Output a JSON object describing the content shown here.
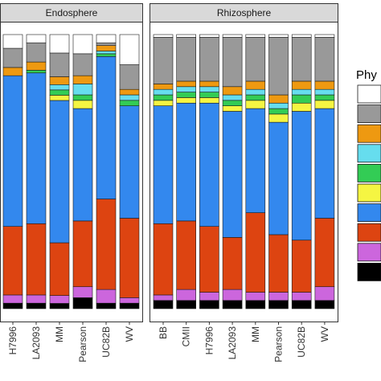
{
  "chart_data": {
    "type": "bar",
    "stacked": true,
    "normalized": true,
    "ylim": [
      0,
      1
    ],
    "grid": false,
    "legend_placement": "right",
    "legend_title": "Phy",
    "series": [
      {
        "color": "#000000"
      },
      {
        "color": "#CC66DD"
      },
      {
        "color": "#DD4411"
      },
      {
        "color": "#3388EE"
      },
      {
        "color": "#F5F542"
      },
      {
        "color": "#33CC55"
      },
      {
        "color": "#66DDEE"
      },
      {
        "color": "#EE9911"
      },
      {
        "color": "#999999"
      },
      {
        "color": "#FFFFFF"
      }
    ],
    "panels": [
      {
        "strip": "Endosphere",
        "categories": [
          "H7996",
          "LA2093",
          "MM",
          "Pearson",
          "UC82B",
          "WV"
        ],
        "values": [
          [
            0.02,
            0.03,
            0.25,
            0.55,
            0.0,
            0.0,
            0.0,
            0.03,
            0.07,
            0.05
          ],
          [
            0.02,
            0.03,
            0.26,
            0.55,
            0.0,
            0.01,
            0.0,
            0.03,
            0.07,
            0.03
          ],
          [
            0.02,
            0.03,
            0.2,
            0.54,
            0.02,
            0.02,
            0.02,
            0.03,
            0.09,
            0.07
          ],
          [
            0.04,
            0.04,
            0.24,
            0.41,
            0.03,
            0.02,
            0.04,
            0.03,
            0.08,
            0.07
          ],
          [
            0.02,
            0.05,
            0.33,
            0.52,
            0.0,
            0.01,
            0.01,
            0.02,
            0.01,
            0.03
          ],
          [
            0.02,
            0.02,
            0.29,
            0.41,
            0.0,
            0.02,
            0.02,
            0.02,
            0.09,
            0.11
          ]
        ]
      },
      {
        "strip": "Rhizosphere",
        "categories": [
          "BB",
          "CMII",
          "H7996",
          "LA2093",
          "MM",
          "Pearson",
          "UC82B",
          "WV"
        ],
        "values": [
          [
            0.03,
            0.02,
            0.26,
            0.43,
            0.02,
            0.02,
            0.02,
            0.02,
            0.17,
            0.01
          ],
          [
            0.03,
            0.04,
            0.25,
            0.43,
            0.02,
            0.02,
            0.02,
            0.02,
            0.16,
            0.01
          ],
          [
            0.03,
            0.03,
            0.24,
            0.45,
            0.02,
            0.02,
            0.02,
            0.02,
            0.16,
            0.01
          ],
          [
            0.03,
            0.04,
            0.19,
            0.46,
            0.02,
            0.02,
            0.02,
            0.03,
            0.18,
            0.01
          ],
          [
            0.03,
            0.03,
            0.29,
            0.38,
            0.03,
            0.02,
            0.02,
            0.03,
            0.16,
            0.01
          ],
          [
            0.03,
            0.03,
            0.21,
            0.41,
            0.03,
            0.02,
            0.02,
            0.03,
            0.21,
            0.01
          ],
          [
            0.03,
            0.03,
            0.19,
            0.47,
            0.03,
            0.03,
            0.02,
            0.03,
            0.16,
            0.01
          ],
          [
            0.03,
            0.05,
            0.25,
            0.4,
            0.03,
            0.02,
            0.02,
            0.03,
            0.16,
            0.01
          ]
        ]
      }
    ]
  }
}
